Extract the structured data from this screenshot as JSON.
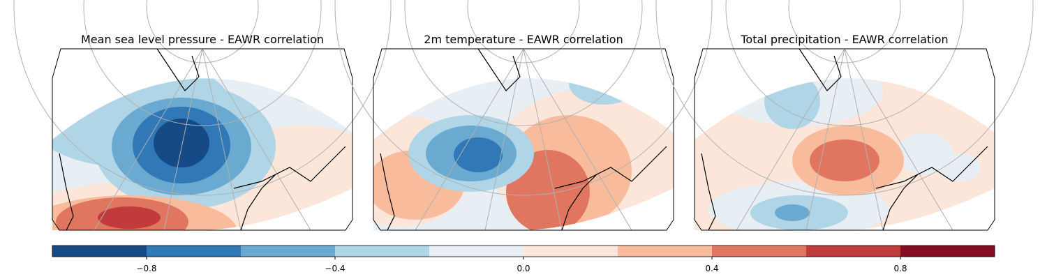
{
  "panels": [
    {
      "title": "Mean sea level pressure - EAWR correlation"
    },
    {
      "title": "2m temperature - EAWR correlation"
    },
    {
      "title": "Total precipitation - EAWR correlation"
    }
  ],
  "colorbar": {
    "levels": [
      -1,
      -0.8,
      -0.6,
      -0.4,
      -0.2,
      0,
      0.2,
      0.4,
      0.6,
      0.8,
      1
    ],
    "colors": [
      "#164a86",
      "#3178b7",
      "#6aa9d0",
      "#b0d5e7",
      "#e7eff5",
      "#fce6da",
      "#f8bc9d",
      "#e0765f",
      "#c23b3c",
      "#870a24"
    ],
    "ticks": [
      {
        "value": -0.8,
        "label": "−0.8"
      },
      {
        "value": -0.4,
        "label": "−0.4"
      },
      {
        "value": 0,
        "label": "0.0"
      },
      0.4,
      0.8
    ]
  }
}
